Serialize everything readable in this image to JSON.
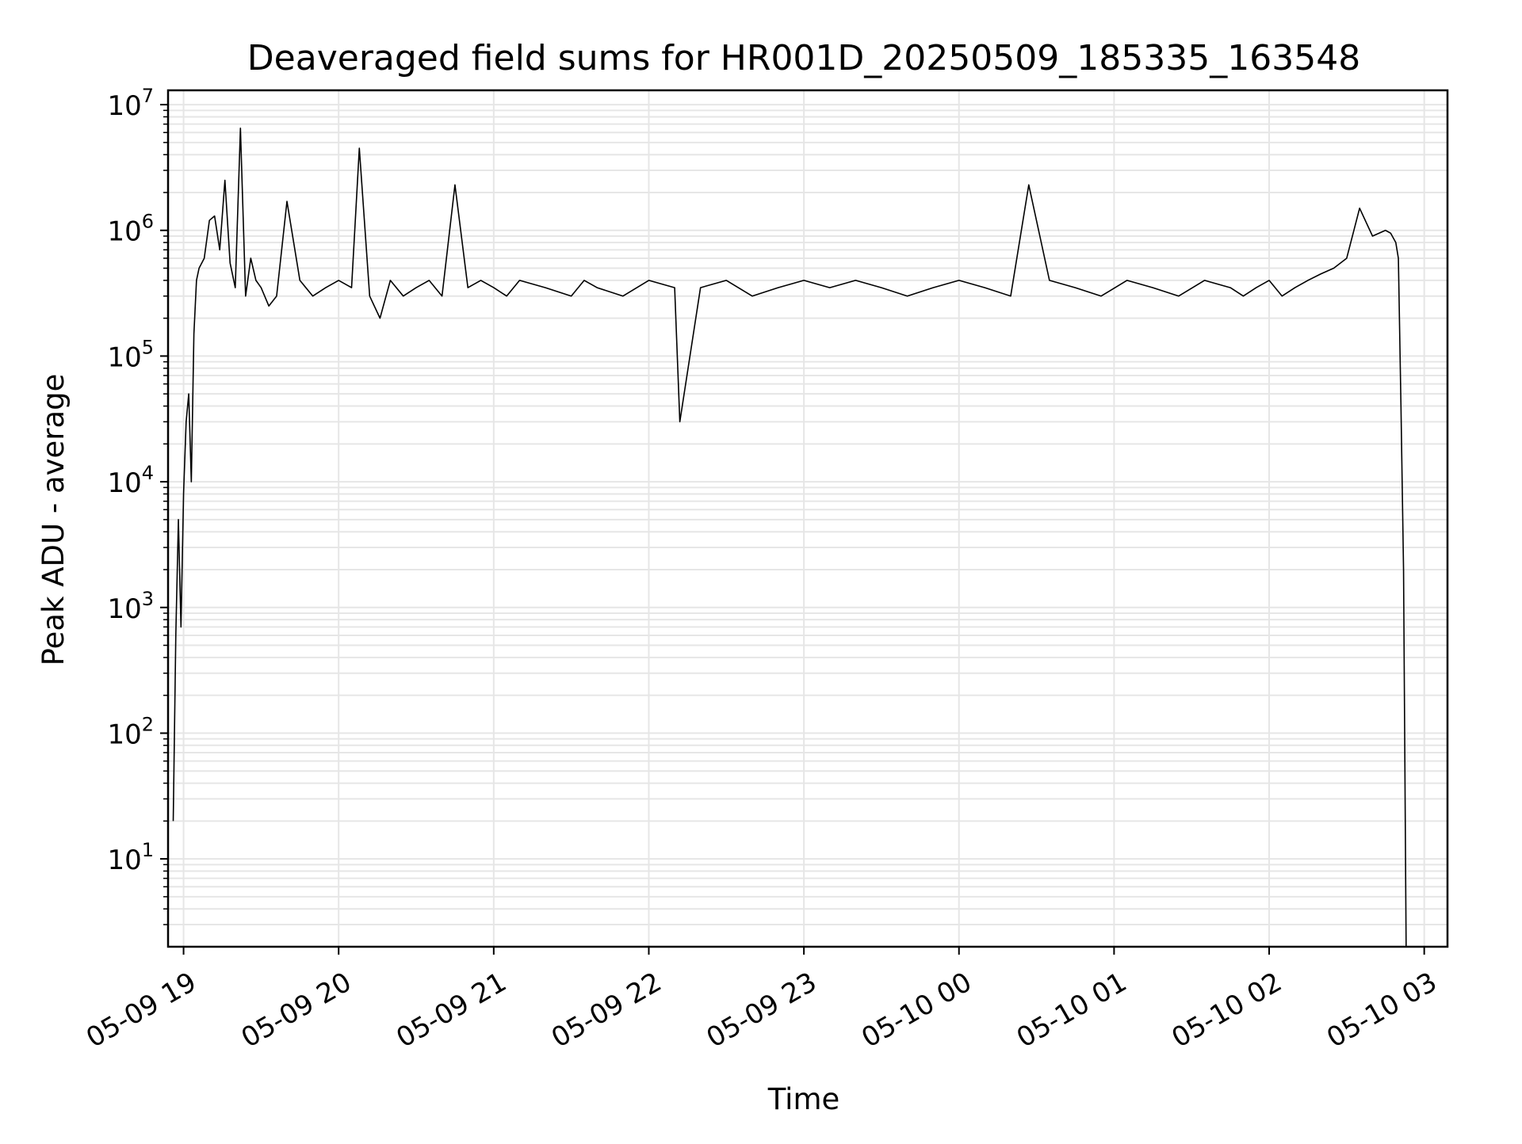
{
  "chart_data": {
    "type": "line",
    "title": "Deaveraged field sums for HR001D_20250509_185335_163548",
    "xlabel": "Time",
    "ylabel": "Peak ADU - average",
    "xscale": "time",
    "yscale": "log",
    "xlim": [
      "2025-05-09 18:54",
      "2025-05-10 03:09"
    ],
    "ylim": [
      2,
      13000000
    ],
    "grid": true,
    "grid_color": "#e6e6e6",
    "line_color": "#000000",
    "x_ticks": [
      {
        "value": "2025-05-09 19:00",
        "label": "05-09 19"
      },
      {
        "value": "2025-05-09 20:00",
        "label": "05-09 20"
      },
      {
        "value": "2025-05-09 21:00",
        "label": "05-09 21"
      },
      {
        "value": "2025-05-09 22:00",
        "label": "05-09 22"
      },
      {
        "value": "2025-05-09 23:00",
        "label": "05-09 23"
      },
      {
        "value": "2025-05-10 00:00",
        "label": "05-10 00"
      },
      {
        "value": "2025-05-10 01:00",
        "label": "05-10 01"
      },
      {
        "value": "2025-05-10 02:00",
        "label": "05-10 02"
      },
      {
        "value": "2025-05-10 03:00",
        "label": "05-10 03"
      }
    ],
    "y_ticks": [
      {
        "value": 10,
        "base": "10",
        "exp": "1"
      },
      {
        "value": 100,
        "base": "10",
        "exp": "2"
      },
      {
        "value": 1000,
        "base": "10",
        "exp": "3"
      },
      {
        "value": 10000,
        "base": "10",
        "exp": "4"
      },
      {
        "value": 100000,
        "base": "10",
        "exp": "5"
      },
      {
        "value": 1000000,
        "base": "10",
        "exp": "6"
      },
      {
        "value": 10000000,
        "base": "10",
        "exp": "7"
      }
    ],
    "series": [
      {
        "x": [
          "2025-05-09 18:56",
          "2025-05-09 18:57",
          "2025-05-09 18:58",
          "2025-05-09 18:59",
          "2025-05-09 19:00",
          "2025-05-09 19:01",
          "2025-05-09 19:02",
          "2025-05-09 19:03",
          "2025-05-09 19:04",
          "2025-05-09 19:05",
          "2025-05-09 19:06",
          "2025-05-09 19:08",
          "2025-05-09 19:10",
          "2025-05-09 19:12",
          "2025-05-09 19:14",
          "2025-05-09 19:16",
          "2025-05-09 19:18",
          "2025-05-09 19:20",
          "2025-05-09 19:22",
          "2025-05-09 19:24",
          "2025-05-09 19:26",
          "2025-05-09 19:28",
          "2025-05-09 19:30",
          "2025-05-09 19:33",
          "2025-05-09 19:36",
          "2025-05-09 19:40",
          "2025-05-09 19:45",
          "2025-05-09 19:50",
          "2025-05-09 19:55",
          "2025-05-09 20:00",
          "2025-05-09 20:05",
          "2025-05-09 20:08",
          "2025-05-09 20:12",
          "2025-05-09 20:16",
          "2025-05-09 20:20",
          "2025-05-09 20:25",
          "2025-05-09 20:30",
          "2025-05-09 20:35",
          "2025-05-09 20:40",
          "2025-05-09 20:45",
          "2025-05-09 20:50",
          "2025-05-09 20:55",
          "2025-05-09 21:00",
          "2025-05-09 21:05",
          "2025-05-09 21:10",
          "2025-05-09 21:20",
          "2025-05-09 21:30",
          "2025-05-09 21:35",
          "2025-05-09 21:40",
          "2025-05-09 21:50",
          "2025-05-09 22:00",
          "2025-05-09 22:10",
          "2025-05-09 22:12",
          "2025-05-09 22:20",
          "2025-05-09 22:30",
          "2025-05-09 22:40",
          "2025-05-09 22:50",
          "2025-05-09 23:00",
          "2025-05-09 23:10",
          "2025-05-09 23:20",
          "2025-05-09 23:30",
          "2025-05-09 23:40",
          "2025-05-09 23:50",
          "2025-05-10 00:00",
          "2025-05-10 00:10",
          "2025-05-10 00:20",
          "2025-05-10 00:27",
          "2025-05-10 00:35",
          "2025-05-10 00:45",
          "2025-05-10 00:55",
          "2025-05-10 01:05",
          "2025-05-10 01:15",
          "2025-05-10 01:25",
          "2025-05-10 01:35",
          "2025-05-10 01:45",
          "2025-05-10 01:50",
          "2025-05-10 01:55",
          "2025-05-10 02:00",
          "2025-05-10 02:05",
          "2025-05-10 02:10",
          "2025-05-10 02:15",
          "2025-05-10 02:20",
          "2025-05-10 02:25",
          "2025-05-10 02:30",
          "2025-05-10 02:35",
          "2025-05-10 02:40",
          "2025-05-10 02:45",
          "2025-05-10 02:47",
          "2025-05-10 02:49",
          "2025-05-10 02:50",
          "2025-05-10 02:51",
          "2025-05-10 02:52",
          "2025-05-10 02:53"
        ],
        "y": [
          20,
          600,
          5000,
          700,
          8000,
          30000,
          50000,
          10000,
          150000,
          400000,
          500000,
          600000,
          1200000,
          1300000,
          700000,
          2500000,
          550000,
          350000,
          6500000,
          300000,
          600000,
          400000,
          350000,
          250000,
          300000,
          1700000,
          400000,
          300000,
          350000,
          400000,
          350000,
          4500000,
          300000,
          200000,
          400000,
          300000,
          350000,
          400000,
          300000,
          2300000,
          350000,
          400000,
          350000,
          300000,
          400000,
          350000,
          300000,
          400000,
          350000,
          300000,
          400000,
          350000,
          30000,
          350000,
          400000,
          300000,
          350000,
          400000,
          350000,
          400000,
          350000,
          300000,
          350000,
          400000,
          350000,
          300000,
          2300000,
          400000,
          350000,
          300000,
          400000,
          350000,
          300000,
          400000,
          350000,
          300000,
          350000,
          400000,
          300000,
          350000,
          400000,
          450000,
          500000,
          600000,
          1500000,
          900000,
          1000000,
          950000,
          800000,
          600000,
          40000,
          2000,
          2
        ]
      }
    ]
  }
}
